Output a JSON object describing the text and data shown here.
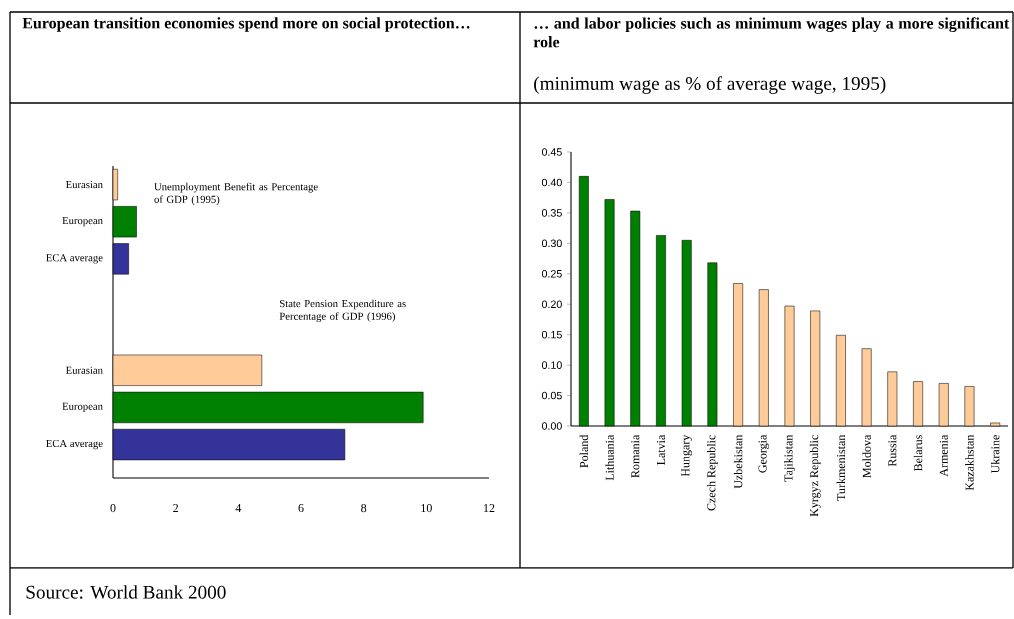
{
  "chart_data": [
    {
      "type": "bar",
      "orientation": "horizontal",
      "title": "European transition economies spend more on social protection…",
      "categories": [
        "Eurasian",
        "European",
        "ECA average",
        null,
        null,
        "Eurasian",
        "European",
        "ECA average"
      ],
      "values": [
        0.15,
        0.75,
        0.5,
        null,
        null,
        4.75,
        9.9,
        7.4
      ],
      "colors": [
        "#ffcc99",
        "#008000",
        "#333399",
        null,
        null,
        "#ffcc99",
        "#008000",
        "#333399"
      ],
      "xlim": [
        0,
        12
      ],
      "xticks": [
        0,
        2,
        4,
        6,
        8,
        10,
        12
      ],
      "annotations": [
        "Unemployment Benefit as Percentage of GDP (1995)",
        "State Pension Expenditure as Percentage of GDP (1996)",
        "Source: World Bank 2000"
      ]
    },
    {
      "type": "bar",
      "title": "… and labor policies such as minimum wages play a more significant role",
      "subtitle": "(minimum wage as % of average wage, 1995)",
      "categories": [
        "Poland",
        "Lithuania",
        "Romania",
        "Latvia",
        "Hungary",
        "Czech Republic",
        "Uzbekistan",
        "Georgia",
        "Tajikistan",
        "Kyrgyz Republic",
        "Turkmenistan",
        "Moldova",
        "Russia",
        "Belarus",
        "Armenia",
        "Kazakhstan",
        "Ukraine"
      ],
      "values": [
        0.41,
        0.372,
        0.353,
        0.313,
        0.305,
        0.268,
        0.234,
        0.224,
        0.197,
        0.189,
        0.149,
        0.127,
        0.089,
        0.073,
        0.07,
        0.065,
        0.005
      ],
      "colors": [
        "#008000",
        "#008000",
        "#008000",
        "#008000",
        "#008000",
        "#008000",
        "#ffcc99",
        "#ffcc99",
        "#ffcc99",
        "#ffcc99",
        "#ffcc99",
        "#ffcc99",
        "#ffcc99",
        "#ffcc99",
        "#ffcc99",
        "#ffcc99",
        "#ffcc99"
      ],
      "ylim": [
        0,
        0.45
      ],
      "yticks": [
        {
          "value": 0,
          "label": "0.00"
        },
        {
          "value": 0.05,
          "label": "0.05"
        },
        {
          "value": 0.1,
          "label": "0.10"
        },
        {
          "value": 0.15,
          "label": "0.15"
        },
        {
          "value": 0.2,
          "label": "0.20"
        },
        {
          "value": 0.25,
          "label": "0.25"
        },
        {
          "value": 0.3,
          "label": "0.30"
        },
        {
          "value": 0.35,
          "label": "0.35"
        },
        {
          "value": 0.4,
          "label": "0.40"
        },
        {
          "value": 0.45,
          "label": "0.45"
        }
      ]
    }
  ]
}
